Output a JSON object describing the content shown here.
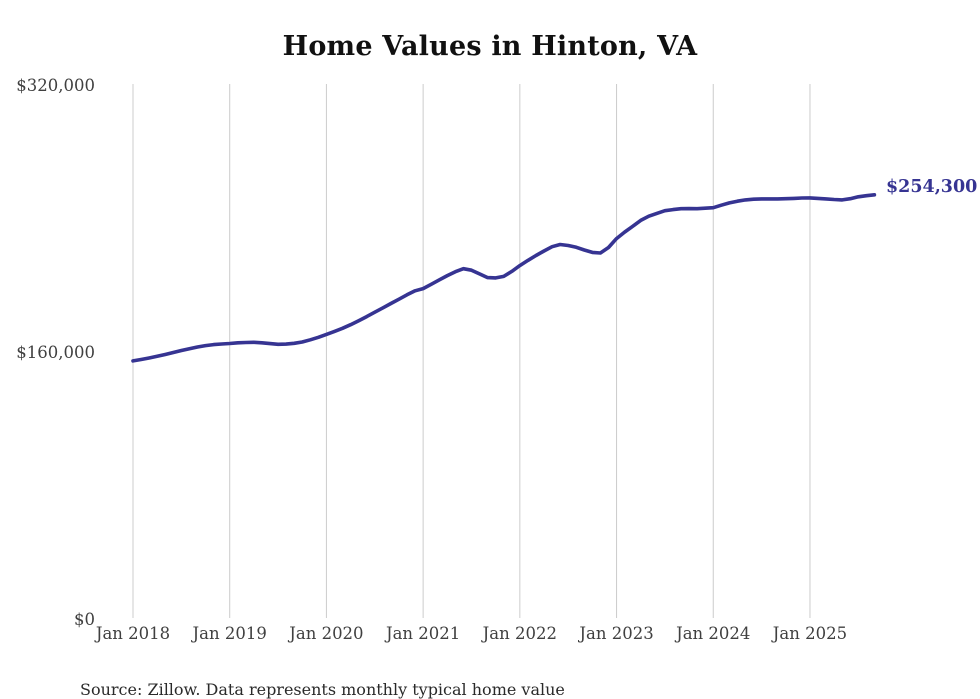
{
  "chart": {
    "title": "Home Values in Hinton, VA",
    "end_label": "$254,300",
    "source_note": "Source: Zillow. Data represents monthly typical home value",
    "accent_color": "#363492",
    "gridline_color": "#cccccc"
  },
  "chart_data": {
    "type": "line",
    "title": "Home Values in Hinton, VA",
    "xlabel": "",
    "ylabel": "",
    "legend": "none",
    "grid": "vertical-only",
    "line_color": "#363492",
    "ylim": [
      0,
      320000
    ],
    "y_tick_values": [
      320000,
      160000,
      0
    ],
    "y_ticks": [
      "$320,000",
      "$160,000",
      "$0"
    ],
    "x_ticks": [
      "Jan 2018",
      "Jan 2019",
      "Jan 2020",
      "Jan 2021",
      "Jan 2022",
      "Jan 2023",
      "Jan 2024",
      "Jan 2025"
    ],
    "frequency": "monthly",
    "end_label": "$254,300",
    "final_value": 254300,
    "x": [
      "2018-01",
      "2018-02",
      "2018-03",
      "2018-04",
      "2018-05",
      "2018-06",
      "2018-07",
      "2018-08",
      "2018-09",
      "2018-10",
      "2018-11",
      "2018-12",
      "2019-01",
      "2019-02",
      "2019-03",
      "2019-04",
      "2019-05",
      "2019-06",
      "2019-07",
      "2019-08",
      "2019-09",
      "2019-10",
      "2019-11",
      "2019-12",
      "2020-01",
      "2020-02",
      "2020-03",
      "2020-04",
      "2020-05",
      "2020-06",
      "2020-07",
      "2020-08",
      "2020-09",
      "2020-10",
      "2020-11",
      "2020-12",
      "2021-01",
      "2021-02",
      "2021-03",
      "2021-04",
      "2021-05",
      "2021-06",
      "2021-07",
      "2021-08",
      "2021-09",
      "2021-10",
      "2021-11",
      "2021-12",
      "2022-01",
      "2022-02",
      "2022-03",
      "2022-04",
      "2022-05",
      "2022-06",
      "2022-07",
      "2022-08",
      "2022-09",
      "2022-10",
      "2022-11",
      "2022-12",
      "2023-01",
      "2023-02",
      "2023-03",
      "2023-04",
      "2023-05",
      "2023-06",
      "2023-07",
      "2023-08",
      "2023-09",
      "2023-10",
      "2023-11",
      "2023-12",
      "2024-01",
      "2024-02",
      "2024-03",
      "2024-04",
      "2024-05",
      "2024-06",
      "2024-07",
      "2024-08",
      "2024-09",
      "2024-10",
      "2024-11",
      "2024-12",
      "2025-01",
      "2025-02",
      "2025-03",
      "2025-04",
      "2025-05",
      "2025-06",
      "2025-07",
      "2025-08",
      "2025-09"
    ],
    "series": [
      {
        "name": "Typical home value",
        "values": [
          155000,
          155800,
          156700,
          157700,
          158800,
          160000,
          161200,
          162300,
          163300,
          164100,
          164700,
          165100,
          165400,
          165800,
          166000,
          166100,
          165800,
          165300,
          164900,
          165000,
          165500,
          166300,
          167600,
          169100,
          170800,
          172600,
          174500,
          176600,
          179000,
          181500,
          184100,
          186700,
          189300,
          191900,
          194500,
          196900,
          198200,
          200800,
          203400,
          206000,
          208300,
          210100,
          209200,
          207000,
          204800,
          204600,
          205500,
          208500,
          212000,
          215100,
          218000,
          220700,
          223300,
          224600,
          224000,
          222900,
          221300,
          219900,
          219500,
          222800,
          228100,
          232000,
          235500,
          239000,
          241500,
          243200,
          244800,
          245500,
          246000,
          246100,
          246000,
          246300,
          246600,
          248100,
          249500,
          250500,
          251300,
          251700,
          251900,
          251900,
          251900,
          252000,
          252200,
          252400,
          252500,
          252200,
          251900,
          251500,
          251300,
          252000,
          253100,
          253800,
          254300
        ]
      }
    ]
  }
}
